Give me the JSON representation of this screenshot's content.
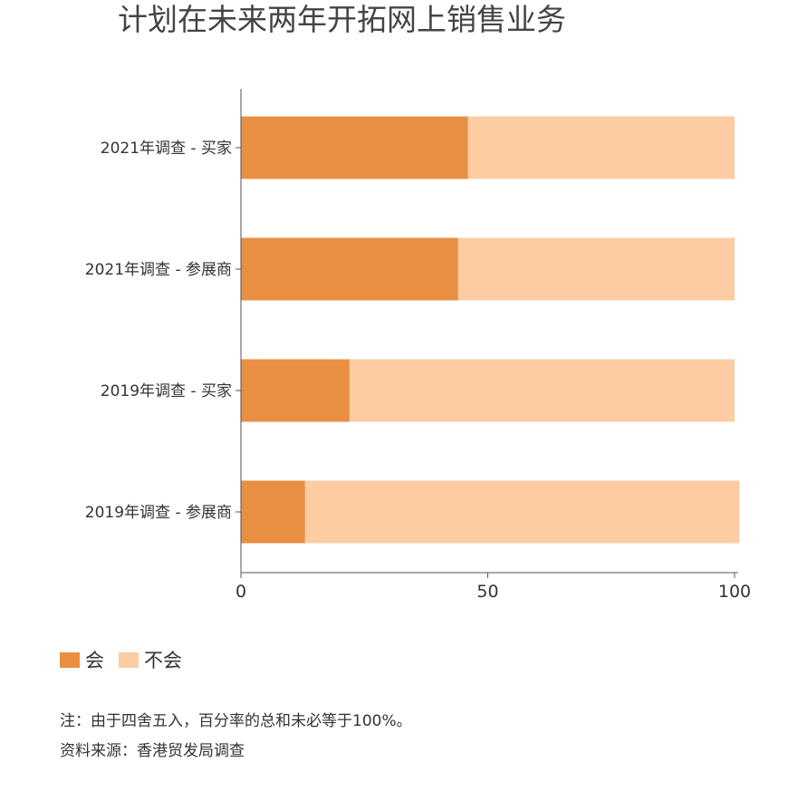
{
  "title": "计划在未来两年开拓网上销售业务",
  "chart_data": {
    "type": "bar",
    "orientation": "horizontal",
    "stacked": true,
    "categories": [
      "2021年调查 - 买家",
      "2021年调查 - 参展商",
      "2019年调查 - 买家",
      "2019年调查 - 参展商"
    ],
    "series": [
      {
        "name": "会",
        "values": [
          46,
          44,
          22,
          13
        ],
        "color": "#E88F42"
      },
      {
        "name": "不会",
        "values": [
          54,
          56,
          78,
          88
        ],
        "color": "#FDCCA2"
      }
    ],
    "xlim": [
      0,
      100
    ],
    "xticks": [
      0,
      50,
      100
    ],
    "grid": false,
    "legend_position": "bottom-left"
  },
  "notes": {
    "note": "注：由于四舍五入，百分率的总和未必等于100%。",
    "source": "资料来源：香港贸发局调查"
  }
}
